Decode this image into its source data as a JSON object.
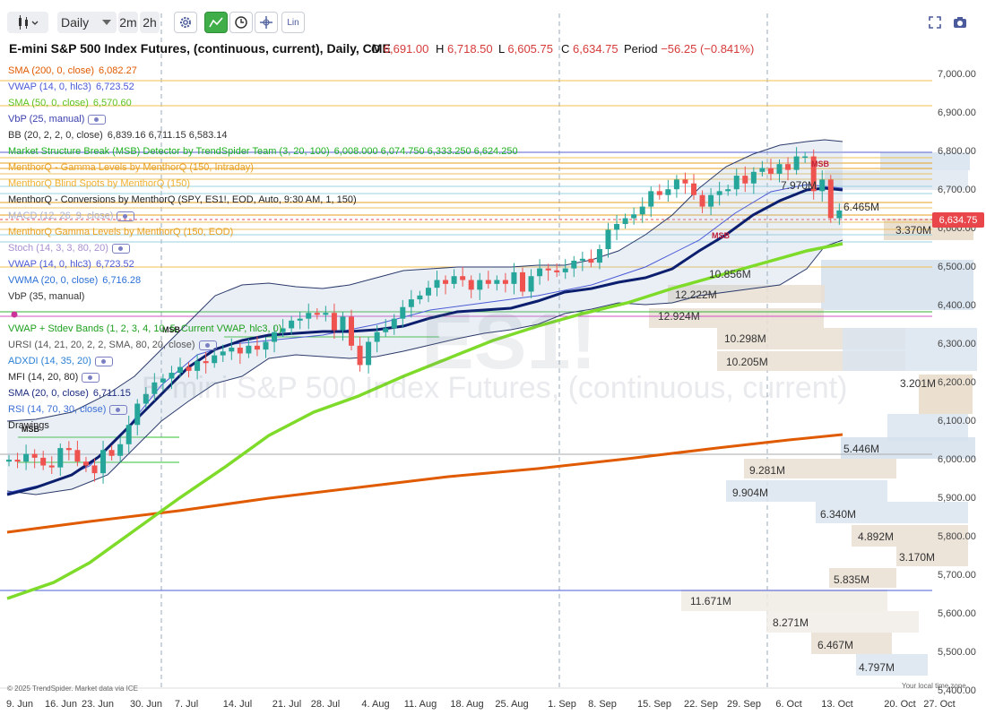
{
  "toolbar": {
    "interval": "Daily",
    "btn_2m": "2m",
    "btn_2h": "2h",
    "scale_lin": "Lin"
  },
  "header": {
    "title": "E-mini S&P 500 Index Futures, (continuous, current), Daily, CME",
    "o_label": "O",
    "o_value": "6,691.00",
    "h_label": "H",
    "h_value": "6,718.50",
    "l_label": "L",
    "l_value": "6,605.75",
    "c_label": "C",
    "c_value": "6,634.75",
    "period_label": "Period",
    "period_value": "−56.25 (−0.841%)"
  },
  "indicators": [
    {
      "name": "SMA (200, 0, close)",
      "value": "6,082.27",
      "color": "#e05a00"
    },
    {
      "name": "VWAP (14, 0, hlc3)",
      "value": "6,723.52",
      "color": "#4b5bd6"
    },
    {
      "name": "SMA (50, 0, close)",
      "value": "6,570.60",
      "color": "#5cc21e"
    },
    {
      "name": "VbP (25, manual)",
      "value": "",
      "color": "#3b3fae",
      "eye": true
    },
    {
      "name": "BB (20, 2, 2, 0, close)",
      "value": "6,839.16  6,711.15  6,583.14",
      "color": "#333333"
    },
    {
      "name": "Market Structure Break (MSB) Detector by TrendSpider Team (3, 20, 100)",
      "value": "6,008.000  6,074.750  6,333.250  6,624.250",
      "color": "#1eb01e"
    },
    {
      "name": "MenthorQ - Gamma Levels by MenthorQ (150, Intraday)",
      "value": "",
      "color": "#e8a020"
    },
    {
      "name": "MenthorQ Blind Spots by MenthorQ (150)",
      "value": "",
      "color": "#f0b030"
    },
    {
      "name": "MenthorQ - Conversions by MenthorQ (SPY, ES1!, EOD, Auto, 9:30 AM, 1, 150)",
      "value": "",
      "color": "#222222"
    },
    {
      "name": "MACD (12, 26, 9, close)",
      "value": "",
      "color": "#a9b0d0",
      "eye": true
    },
    {
      "name": "MenthorQ Gamma Levels by MenthorQ (150, EOD)",
      "value": "",
      "color": "#e8a020"
    },
    {
      "name": "Stoch (14, 3, 3, 80, 20)",
      "value": "",
      "color": "#a88fd0",
      "eye": true
    },
    {
      "name": "VWAP (14, 0, hlc3)",
      "value": "6,723.52",
      "color": "#4b5bd6"
    },
    {
      "name": "VWMA (20, 0, close)",
      "value": "6,716.28",
      "color": "#2a6fd6"
    },
    {
      "name": "VbP (35, manual)",
      "value": "",
      "color": "#333333"
    },
    {
      "name": "",
      "value": "",
      "color": "#cc3399"
    },
    {
      "name": "VWAP + Stdev Bands (1, 2, 3, 4, 10, 5, Current VWAP, hlc3, 0)",
      "value": "",
      "color": "#1ea01e"
    },
    {
      "name": "URSI (14, 21, 20, 2, 2, SMA, 80, 20, close)",
      "value": "",
      "color": "#555555",
      "eye": true
    },
    {
      "name": "ADXDI (14, 35, 20)",
      "value": "",
      "color": "#2a7fd6",
      "eye": true
    },
    {
      "name": "MFI (14, 20, 80)",
      "value": "",
      "color": "#2a2a2a",
      "eye": true
    },
    {
      "name": "SMA (20, 0, close)",
      "value": "6,711.15",
      "color": "#1a2a80"
    },
    {
      "name": "RSI (14, 70, 30, close)",
      "value": "",
      "color": "#3b6fd6",
      "eye": true
    },
    {
      "name": "Drawings",
      "value": "",
      "color": "#222222"
    }
  ],
  "msb_labels": [
    "MSB",
    "MSB",
    "MSB",
    "MSB"
  ],
  "annotations": {
    "seasonality_label": "6.465M",
    "mid_label": "7.970M"
  },
  "y_axis": [
    "7,000.00",
    "6,900.00",
    "6,800.00",
    "6,700.00",
    "6,600.00",
    "6,500.00",
    "6,400.00",
    "6,300.00",
    "6,200.00",
    "6,100.00",
    "6,000.00",
    "5,900.00",
    "5,800.00",
    "5,700.00",
    "5,600.00",
    "5,500.00",
    "5,400.00"
  ],
  "x_axis": [
    "9. Jun",
    "16. Jun",
    "23. Jun",
    "30. Jun",
    "7. Jul",
    "14. Jul",
    "21. Jul",
    "28. Jul",
    "4. Aug",
    "11. Aug",
    "18. Aug",
    "25. Aug",
    "1. Sep",
    "8. Sep",
    "15. Sep",
    "22. Sep",
    "29. Sep",
    "6. Oct",
    "13. Oct",
    "20. Oct",
    "27. Oct"
  ],
  "current_price": "6,634.75",
  "volume_labels": [
    "3.370M",
    "10.856M",
    "12.222M",
    "12.924M",
    "10.298M",
    "10.205M",
    "3.201M",
    "5.446M",
    "9.281M",
    "9.904M",
    "6.340M",
    "4.892M",
    "3.170M",
    "5.835M",
    "11.671M",
    "8.271M",
    "6.467M",
    "4.797M"
  ],
  "watermark": {
    "symbol": "ES1!",
    "name": "E-mini S&P 500 Index Futures, (continuous, current)"
  },
  "footer": {
    "credit": "© 2025 TrendSpider. Market data via ICE",
    "timezone": "Your local time zone"
  },
  "colors": {
    "up": "#26a69a",
    "down": "#ef5350",
    "sma200": "#e05a00",
    "sma50": "#7fdb2a",
    "sma20": "#0b1f6e",
    "bb": "#2a3a6a"
  }
}
